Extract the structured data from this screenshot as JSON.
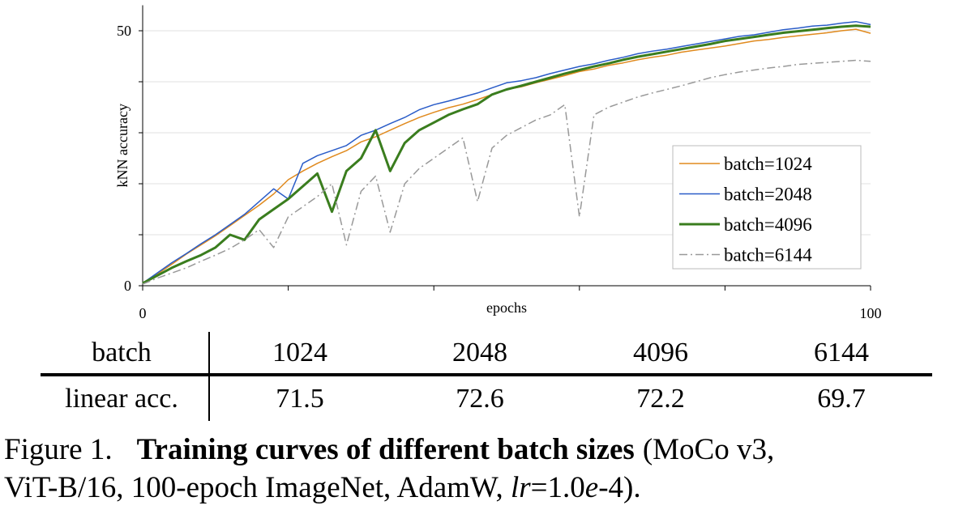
{
  "chart_data": {
    "type": "line",
    "xlabel": "epochs",
    "ylabel": "kNN accuracy",
    "x": [
      0,
      2,
      4,
      6,
      8,
      10,
      12,
      14,
      16,
      18,
      20,
      22,
      24,
      26,
      28,
      30,
      32,
      34,
      36,
      38,
      40,
      42,
      44,
      46,
      48,
      50,
      52,
      54,
      56,
      58,
      60,
      62,
      64,
      66,
      68,
      70,
      72,
      74,
      76,
      78,
      80,
      82,
      84,
      86,
      88,
      90,
      92,
      94,
      96,
      98,
      100
    ],
    "xlim": [
      0,
      100
    ],
    "xticks": [
      0,
      100
    ],
    "minor_xticks": [
      20,
      40,
      60,
      80
    ],
    "ylim": [
      0,
      55
    ],
    "yticks": [
      0,
      50
    ],
    "minor_yticks": [
      10,
      20,
      30,
      40
    ],
    "grid": true,
    "legend": "lower right",
    "series": [
      {
        "name": "batch=1024",
        "color": "#e08a1e",
        "line_width": 1.5,
        "line_style": "solid",
        "values": [
          0.5,
          2.3,
          4.2,
          6.2,
          8,
          9.8,
          11.8,
          13.8,
          15.8,
          18,
          20.8,
          22.5,
          24,
          25.3,
          26.5,
          28.2,
          29.2,
          30.5,
          31.8,
          33,
          34,
          34.9,
          35.6,
          36.5,
          37.5,
          38.5,
          39,
          39.8,
          40.5,
          41.2,
          42,
          42.5,
          43.2,
          43.7,
          44.3,
          44.8,
          45.2,
          45.8,
          46.2,
          46.6,
          47,
          47.5,
          48,
          48.3,
          48.7,
          49,
          49.3,
          49.6,
          50,
          50.3,
          49.5
        ]
      },
      {
        "name": "batch=2048",
        "color": "#2a5cc8",
        "line_width": 1.5,
        "line_style": "solid",
        "values": [
          0.5,
          2.5,
          4.5,
          6.3,
          8.2,
          10,
          12,
          14,
          16.5,
          19,
          17,
          24,
          25.5,
          26.5,
          27.5,
          29.5,
          30.5,
          31.8,
          33,
          34.5,
          35.5,
          36.2,
          37,
          37.8,
          38.8,
          39.8,
          40.2,
          40.8,
          41.6,
          42.3,
          43,
          43.5,
          44.2,
          44.8,
          45.5,
          46,
          46.4,
          46.9,
          47.4,
          47.9,
          48.4,
          48.9,
          49.2,
          49.7,
          50.2,
          50.5,
          50.9,
          51.1,
          51.5,
          51.8,
          51.2
        ]
      },
      {
        "name": "batch=4096",
        "color": "#3a7d1e",
        "line_width": 3,
        "line_style": "solid",
        "values": [
          0.5,
          2,
          3.5,
          4.8,
          6,
          7.5,
          10,
          9,
          13,
          15,
          17,
          19.5,
          22,
          14.5,
          22.5,
          25,
          30.5,
          22.5,
          28,
          30.5,
          32,
          33.5,
          34.6,
          35.6,
          37.5,
          38.5,
          39.2,
          40,
          40.8,
          41.6,
          42.3,
          43,
          43.6,
          44.3,
          44.9,
          45.4,
          45.9,
          46.4,
          46.9,
          47.4,
          48,
          48.4,
          48.8,
          49.2,
          49.6,
          49.9,
          50.2,
          50.5,
          50.8,
          51,
          50.8
        ]
      },
      {
        "name": "batch=6144",
        "color": "#999999",
        "line_width": 1.5,
        "line_style": "dashdot",
        "values": [
          0.3,
          1.5,
          2.5,
          3.5,
          4.8,
          6,
          7.3,
          9,
          11,
          7.5,
          13.5,
          15.5,
          17.5,
          20,
          8,
          18.5,
          21.5,
          10.5,
          20,
          23,
          25,
          27,
          29,
          16.5,
          27,
          29.5,
          31,
          32.5,
          33.5,
          35.5,
          13.5,
          33.5,
          35,
          36,
          37,
          37.8,
          38.5,
          39.2,
          40,
          40.8,
          41.4,
          41.9,
          42.3,
          42.7,
          43,
          43.4,
          43.6,
          43.8,
          44,
          44.2,
          44
        ]
      }
    ]
  },
  "table": {
    "header": [
      "batch",
      "1024",
      "2048",
      "4096",
      "6144"
    ],
    "rows": [
      [
        "linear acc.",
        "71.5",
        "72.6",
        "72.2",
        "69.7"
      ]
    ]
  },
  "caption": {
    "label": "Figure 1.",
    "title": "Training curves of different batch sizes",
    "text": [
      "(MoCo v3,",
      "ViT-B/16, 100-epoch ImageNet, AdamW, ",
      "lr",
      "=1.0",
      "e",
      "-4)."
    ]
  }
}
